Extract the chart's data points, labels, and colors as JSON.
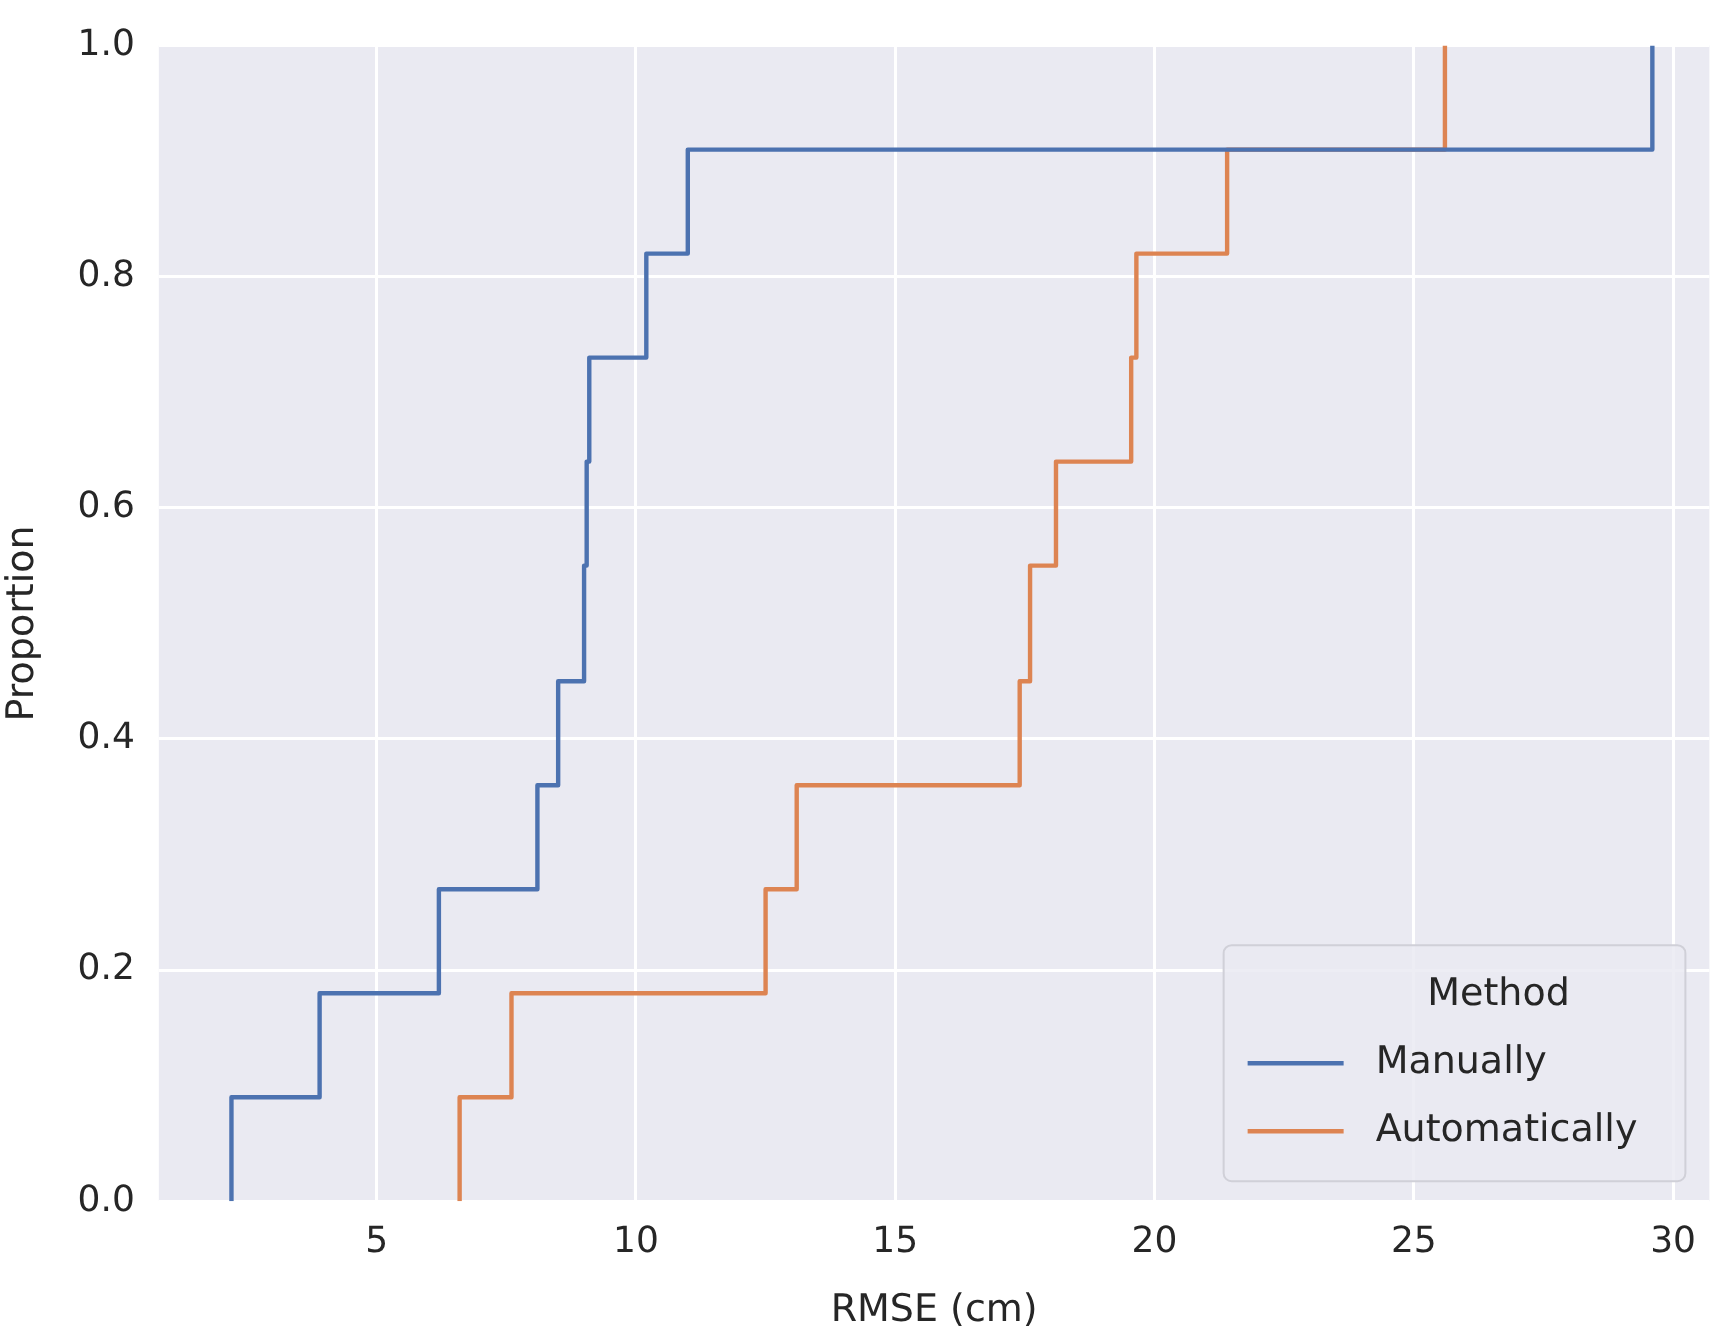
{
  "chart_data": {
    "type": "step",
    "xlabel": "RMSE (cm)",
    "ylabel": "Proportion",
    "legend_title": "Method",
    "legend": "bottom right",
    "grid": true,
    "series": [
      {
        "name": "Manually",
        "color": "#4c72b0",
        "x": [
          2.2,
          2.2,
          3.9,
          6.2,
          8.1,
          8.5,
          9.0,
          9.05,
          9.1,
          10.2,
          11.0,
          29.6
        ],
        "values": [
          0,
          0.09,
          0.18,
          0.27,
          0.36,
          0.45,
          0.55,
          0.64,
          0.73,
          0.82,
          0.91,
          1.0
        ]
      },
      {
        "name": "Automatically",
        "color": "#dd8452",
        "x": [
          6.6,
          6.6,
          7.6,
          12.5,
          13.1,
          17.4,
          17.6,
          18.1,
          19.55,
          19.65,
          21.4,
          25.6
        ],
        "values": [
          0,
          0.09,
          0.18,
          0.27,
          0.36,
          0.45,
          0.55,
          0.64,
          0.73,
          0.82,
          0.91,
          1.0
        ]
      }
    ],
    "xlim": [
      0.8,
      30.7
    ],
    "xticks": [
      5,
      10,
      15,
      20,
      25,
      30
    ],
    "ylim": [
      0,
      1
    ],
    "yticks": [
      {
        "value": 0,
        "label": "0.0"
      },
      {
        "value": 0.2,
        "label": "0.2"
      },
      {
        "value": 0.4,
        "label": "0.4"
      },
      {
        "value": 0.6,
        "label": "0.6"
      },
      {
        "value": 0.8,
        "label": "0.8"
      },
      {
        "value": 1,
        "label": "1.0"
      }
    ]
  }
}
